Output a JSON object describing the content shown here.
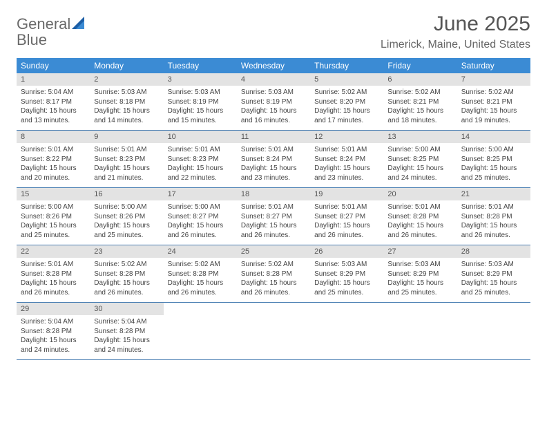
{
  "brand": {
    "part1": "General",
    "part2": "Blue"
  },
  "title": "June 2025",
  "location": "Limerick, Maine, United States",
  "colors": {
    "header_bg": "#3b8bd4",
    "header_text": "#ffffff",
    "daynum_bg": "#e3e3e3",
    "rule": "#4a7fb3",
    "logo_gray": "#6a6a6a",
    "logo_blue": "#3b7fc4"
  },
  "weekdays": [
    "Sunday",
    "Monday",
    "Tuesday",
    "Wednesday",
    "Thursday",
    "Friday",
    "Saturday"
  ],
  "days": [
    {
      "n": "1",
      "sunrise": "5:04 AM",
      "sunset": "8:17 PM",
      "daylight": "15 hours and 13 minutes."
    },
    {
      "n": "2",
      "sunrise": "5:03 AM",
      "sunset": "8:18 PM",
      "daylight": "15 hours and 14 minutes."
    },
    {
      "n": "3",
      "sunrise": "5:03 AM",
      "sunset": "8:19 PM",
      "daylight": "15 hours and 15 minutes."
    },
    {
      "n": "4",
      "sunrise": "5:03 AM",
      "sunset": "8:19 PM",
      "daylight": "15 hours and 16 minutes."
    },
    {
      "n": "5",
      "sunrise": "5:02 AM",
      "sunset": "8:20 PM",
      "daylight": "15 hours and 17 minutes."
    },
    {
      "n": "6",
      "sunrise": "5:02 AM",
      "sunset": "8:21 PM",
      "daylight": "15 hours and 18 minutes."
    },
    {
      "n": "7",
      "sunrise": "5:02 AM",
      "sunset": "8:21 PM",
      "daylight": "15 hours and 19 minutes."
    },
    {
      "n": "8",
      "sunrise": "5:01 AM",
      "sunset": "8:22 PM",
      "daylight": "15 hours and 20 minutes."
    },
    {
      "n": "9",
      "sunrise": "5:01 AM",
      "sunset": "8:23 PM",
      "daylight": "15 hours and 21 minutes."
    },
    {
      "n": "10",
      "sunrise": "5:01 AM",
      "sunset": "8:23 PM",
      "daylight": "15 hours and 22 minutes."
    },
    {
      "n": "11",
      "sunrise": "5:01 AM",
      "sunset": "8:24 PM",
      "daylight": "15 hours and 23 minutes."
    },
    {
      "n": "12",
      "sunrise": "5:01 AM",
      "sunset": "8:24 PM",
      "daylight": "15 hours and 23 minutes."
    },
    {
      "n": "13",
      "sunrise": "5:00 AM",
      "sunset": "8:25 PM",
      "daylight": "15 hours and 24 minutes."
    },
    {
      "n": "14",
      "sunrise": "5:00 AM",
      "sunset": "8:25 PM",
      "daylight": "15 hours and 25 minutes."
    },
    {
      "n": "15",
      "sunrise": "5:00 AM",
      "sunset": "8:26 PM",
      "daylight": "15 hours and 25 minutes."
    },
    {
      "n": "16",
      "sunrise": "5:00 AM",
      "sunset": "8:26 PM",
      "daylight": "15 hours and 25 minutes."
    },
    {
      "n": "17",
      "sunrise": "5:00 AM",
      "sunset": "8:27 PM",
      "daylight": "15 hours and 26 minutes."
    },
    {
      "n": "18",
      "sunrise": "5:01 AM",
      "sunset": "8:27 PM",
      "daylight": "15 hours and 26 minutes."
    },
    {
      "n": "19",
      "sunrise": "5:01 AM",
      "sunset": "8:27 PM",
      "daylight": "15 hours and 26 minutes."
    },
    {
      "n": "20",
      "sunrise": "5:01 AM",
      "sunset": "8:28 PM",
      "daylight": "15 hours and 26 minutes."
    },
    {
      "n": "21",
      "sunrise": "5:01 AM",
      "sunset": "8:28 PM",
      "daylight": "15 hours and 26 minutes."
    },
    {
      "n": "22",
      "sunrise": "5:01 AM",
      "sunset": "8:28 PM",
      "daylight": "15 hours and 26 minutes."
    },
    {
      "n": "23",
      "sunrise": "5:02 AM",
      "sunset": "8:28 PM",
      "daylight": "15 hours and 26 minutes."
    },
    {
      "n": "24",
      "sunrise": "5:02 AM",
      "sunset": "8:28 PM",
      "daylight": "15 hours and 26 minutes."
    },
    {
      "n": "25",
      "sunrise": "5:02 AM",
      "sunset": "8:28 PM",
      "daylight": "15 hours and 26 minutes."
    },
    {
      "n": "26",
      "sunrise": "5:03 AM",
      "sunset": "8:29 PM",
      "daylight": "15 hours and 25 minutes."
    },
    {
      "n": "27",
      "sunrise": "5:03 AM",
      "sunset": "8:29 PM",
      "daylight": "15 hours and 25 minutes."
    },
    {
      "n": "28",
      "sunrise": "5:03 AM",
      "sunset": "8:29 PM",
      "daylight": "15 hours and 25 minutes."
    },
    {
      "n": "29",
      "sunrise": "5:04 AM",
      "sunset": "8:28 PM",
      "daylight": "15 hours and 24 minutes."
    },
    {
      "n": "30",
      "sunrise": "5:04 AM",
      "sunset": "8:28 PM",
      "daylight": "15 hours and 24 minutes."
    }
  ],
  "labels": {
    "sunrise": "Sunrise:",
    "sunset": "Sunset:",
    "daylight": "Daylight:"
  }
}
